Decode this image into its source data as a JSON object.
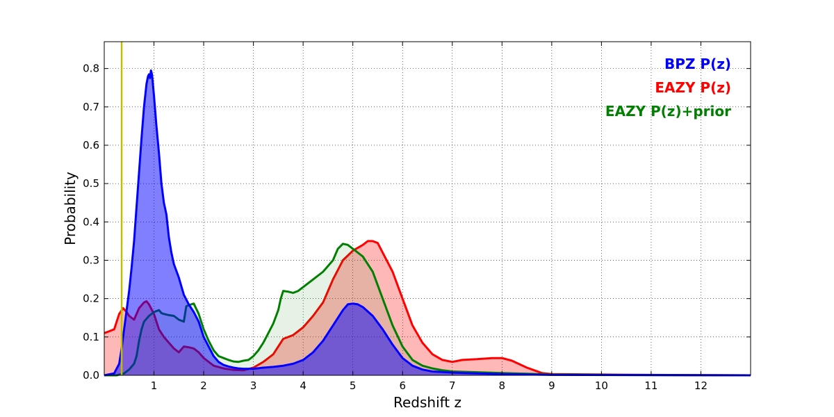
{
  "chart_data": {
    "type": "area",
    "title": "",
    "xlabel": "Redshift z",
    "ylabel": "Probability",
    "xlim": [
      0,
      13
    ],
    "ylim": [
      0,
      0.87
    ],
    "grid": true,
    "legend_position": "top-right",
    "xticks": [
      "1",
      "2",
      "3",
      "4",
      "5",
      "6",
      "7",
      "8",
      "9",
      "10",
      "11",
      "12"
    ],
    "yticks": [
      "0.0",
      "0.1",
      "0.2",
      "0.3",
      "0.4",
      "0.5",
      "0.6",
      "0.7",
      "0.8"
    ],
    "reference_line": {
      "x": 0.35,
      "color": "#bfbf00"
    },
    "series": [
      {
        "name": "EAZY P(z)",
        "color": "#ff0000",
        "fill": "#ff0000",
        "fill_opacity": 0.28,
        "points": [
          [
            0,
            0.11
          ],
          [
            0.1,
            0.115
          ],
          [
            0.2,
            0.12
          ],
          [
            0.3,
            0.16
          ],
          [
            0.38,
            0.175
          ],
          [
            0.45,
            0.165
          ],
          [
            0.5,
            0.155
          ],
          [
            0.6,
            0.145
          ],
          [
            0.7,
            0.175
          ],
          [
            0.8,
            0.19
          ],
          [
            0.85,
            0.193
          ],
          [
            0.9,
            0.185
          ],
          [
            1.0,
            0.16
          ],
          [
            1.1,
            0.12
          ],
          [
            1.2,
            0.1
          ],
          [
            1.3,
            0.085
          ],
          [
            1.4,
            0.07
          ],
          [
            1.5,
            0.06
          ],
          [
            1.6,
            0.075
          ],
          [
            1.7,
            0.073
          ],
          [
            1.8,
            0.07
          ],
          [
            1.9,
            0.06
          ],
          [
            2.0,
            0.045
          ],
          [
            2.2,
            0.025
          ],
          [
            2.4,
            0.018
          ],
          [
            2.6,
            0.014
          ],
          [
            2.8,
            0.013
          ],
          [
            3.0,
            0.02
          ],
          [
            3.2,
            0.035
          ],
          [
            3.4,
            0.055
          ],
          [
            3.6,
            0.095
          ],
          [
            3.8,
            0.105
          ],
          [
            4.0,
            0.125
          ],
          [
            4.2,
            0.155
          ],
          [
            4.4,
            0.19
          ],
          [
            4.6,
            0.25
          ],
          [
            4.8,
            0.3
          ],
          [
            5.0,
            0.325
          ],
          [
            5.2,
            0.34
          ],
          [
            5.3,
            0.35
          ],
          [
            5.4,
            0.35
          ],
          [
            5.5,
            0.345
          ],
          [
            5.6,
            0.32
          ],
          [
            5.8,
            0.27
          ],
          [
            6.0,
            0.2
          ],
          [
            6.2,
            0.13
          ],
          [
            6.4,
            0.085
          ],
          [
            6.6,
            0.055
          ],
          [
            6.8,
            0.04
          ],
          [
            7.0,
            0.035
          ],
          [
            7.2,
            0.04
          ],
          [
            7.5,
            0.042
          ],
          [
            7.8,
            0.045
          ],
          [
            8.0,
            0.045
          ],
          [
            8.2,
            0.038
          ],
          [
            8.5,
            0.02
          ],
          [
            8.8,
            0.006
          ],
          [
            9.0,
            0.003
          ],
          [
            10,
            0.002
          ],
          [
            11,
            0.001
          ],
          [
            12,
            0.0005
          ],
          [
            13,
            0
          ]
        ]
      },
      {
        "name": "EAZY P(z)+prior",
        "color": "#007f00",
        "fill": "#007f00",
        "fill_opacity": 0.1,
        "points": [
          [
            0,
            0
          ],
          [
            0.25,
            0
          ],
          [
            0.4,
            0.005
          ],
          [
            0.5,
            0.015
          ],
          [
            0.6,
            0.03
          ],
          [
            0.65,
            0.05
          ],
          [
            0.7,
            0.09
          ],
          [
            0.75,
            0.12
          ],
          [
            0.8,
            0.14
          ],
          [
            0.9,
            0.155
          ],
          [
            1.0,
            0.165
          ],
          [
            1.1,
            0.17
          ],
          [
            1.15,
            0.162
          ],
          [
            1.2,
            0.16
          ],
          [
            1.3,
            0.157
          ],
          [
            1.4,
            0.155
          ],
          [
            1.5,
            0.145
          ],
          [
            1.6,
            0.14
          ],
          [
            1.65,
            0.18
          ],
          [
            1.7,
            0.183
          ],
          [
            1.8,
            0.187
          ],
          [
            1.9,
            0.16
          ],
          [
            2.0,
            0.12
          ],
          [
            2.1,
            0.09
          ],
          [
            2.2,
            0.065
          ],
          [
            2.3,
            0.05
          ],
          [
            2.4,
            0.045
          ],
          [
            2.5,
            0.04
          ],
          [
            2.6,
            0.036
          ],
          [
            2.7,
            0.035
          ],
          [
            2.8,
            0.038
          ],
          [
            2.9,
            0.04
          ],
          [
            3.0,
            0.05
          ],
          [
            3.1,
            0.065
          ],
          [
            3.2,
            0.085
          ],
          [
            3.3,
            0.11
          ],
          [
            3.4,
            0.135
          ],
          [
            3.5,
            0.17
          ],
          [
            3.55,
            0.2
          ],
          [
            3.6,
            0.22
          ],
          [
            3.7,
            0.218
          ],
          [
            3.8,
            0.215
          ],
          [
            3.9,
            0.22
          ],
          [
            4.0,
            0.23
          ],
          [
            4.2,
            0.25
          ],
          [
            4.4,
            0.27
          ],
          [
            4.6,
            0.3
          ],
          [
            4.7,
            0.33
          ],
          [
            4.8,
            0.343
          ],
          [
            4.9,
            0.34
          ],
          [
            5.0,
            0.33
          ],
          [
            5.2,
            0.31
          ],
          [
            5.4,
            0.27
          ],
          [
            5.6,
            0.2
          ],
          [
            5.8,
            0.13
          ],
          [
            6.0,
            0.075
          ],
          [
            6.2,
            0.04
          ],
          [
            6.4,
            0.025
          ],
          [
            6.6,
            0.018
          ],
          [
            6.8,
            0.013
          ],
          [
            7.0,
            0.01
          ],
          [
            7.5,
            0.008
          ],
          [
            8.0,
            0.006
          ],
          [
            8.5,
            0.004
          ],
          [
            9.0,
            0.002
          ],
          [
            10,
            0.001
          ],
          [
            13,
            0
          ]
        ]
      },
      {
        "name": "BPZ P(z)",
        "color": "#0000ff",
        "fill": "#0000ff",
        "fill_opacity": 0.5,
        "points": [
          [
            0,
            0
          ],
          [
            0.2,
            0.005
          ],
          [
            0.3,
            0.03
          ],
          [
            0.35,
            0.07
          ],
          [
            0.4,
            0.12
          ],
          [
            0.45,
            0.17
          ],
          [
            0.5,
            0.22
          ],
          [
            0.55,
            0.28
          ],
          [
            0.6,
            0.35
          ],
          [
            0.65,
            0.44
          ],
          [
            0.7,
            0.53
          ],
          [
            0.75,
            0.62
          ],
          [
            0.8,
            0.7
          ],
          [
            0.85,
            0.76
          ],
          [
            0.88,
            0.78
          ],
          [
            0.9,
            0.785
          ],
          [
            0.92,
            0.775
          ],
          [
            0.94,
            0.795
          ],
          [
            0.96,
            0.785
          ],
          [
            1.0,
            0.73
          ],
          [
            1.05,
            0.65
          ],
          [
            1.1,
            0.58
          ],
          [
            1.15,
            0.5
          ],
          [
            1.2,
            0.45
          ],
          [
            1.25,
            0.42
          ],
          [
            1.3,
            0.36
          ],
          [
            1.35,
            0.32
          ],
          [
            1.4,
            0.29
          ],
          [
            1.5,
            0.255
          ],
          [
            1.6,
            0.21
          ],
          [
            1.7,
            0.185
          ],
          [
            1.8,
            0.165
          ],
          [
            1.9,
            0.14
          ],
          [
            2.0,
            0.1
          ],
          [
            2.1,
            0.075
          ],
          [
            2.2,
            0.05
          ],
          [
            2.3,
            0.035
          ],
          [
            2.4,
            0.027
          ],
          [
            2.5,
            0.023
          ],
          [
            2.6,
            0.02
          ],
          [
            2.7,
            0.018
          ],
          [
            2.8,
            0.017
          ],
          [
            3.0,
            0.017
          ],
          [
            3.2,
            0.02
          ],
          [
            3.4,
            0.022
          ],
          [
            3.6,
            0.025
          ],
          [
            3.8,
            0.03
          ],
          [
            4.0,
            0.04
          ],
          [
            4.2,
            0.06
          ],
          [
            4.4,
            0.09
          ],
          [
            4.6,
            0.13
          ],
          [
            4.8,
            0.17
          ],
          [
            4.9,
            0.185
          ],
          [
            5.0,
            0.187
          ],
          [
            5.1,
            0.185
          ],
          [
            5.2,
            0.178
          ],
          [
            5.4,
            0.155
          ],
          [
            5.6,
            0.12
          ],
          [
            5.8,
            0.08
          ],
          [
            6.0,
            0.045
          ],
          [
            6.2,
            0.025
          ],
          [
            6.4,
            0.015
          ],
          [
            6.6,
            0.01
          ],
          [
            7.0,
            0.007
          ],
          [
            7.5,
            0.005
          ],
          [
            8.0,
            0.003
          ],
          [
            9.0,
            0.001
          ],
          [
            13,
            0
          ]
        ]
      }
    ]
  }
}
